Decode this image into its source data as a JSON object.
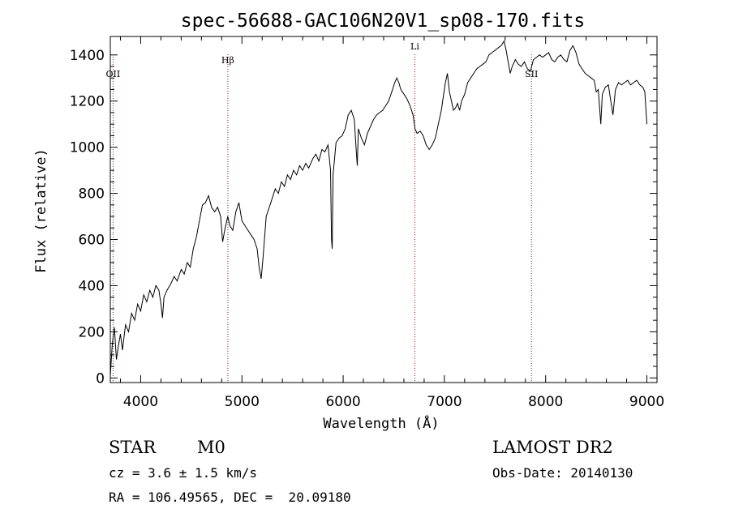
{
  "chart_data": {
    "type": "line",
    "title": "spec-56688-GAC106N20V1_sp08-170.fits",
    "xlabel": "Wavelength (Å)",
    "ylabel": "Flux (relative)",
    "xlim": [
      3700,
      9100
    ],
    "ylim": [
      -20,
      1480
    ],
    "xticks": [
      4000,
      5000,
      6000,
      7000,
      8000,
      9000
    ],
    "yticks": [
      0,
      200,
      400,
      600,
      800,
      1000,
      1200,
      1400
    ],
    "grid": false,
    "series": [
      {
        "name": "spectrum",
        "points": [
          [
            3700,
            10
          ],
          [
            3720,
            150
          ],
          [
            3740,
            220
          ],
          [
            3760,
            80
          ],
          [
            3780,
            140
          ],
          [
            3800,
            190
          ],
          [
            3820,
            120
          ],
          [
            3850,
            230
          ],
          [
            3880,
            200
          ],
          [
            3910,
            280
          ],
          [
            3940,
            250
          ],
          [
            3970,
            320
          ],
          [
            4000,
            290
          ],
          [
            4030,
            360
          ],
          [
            4060,
            330
          ],
          [
            4090,
            380
          ],
          [
            4120,
            350
          ],
          [
            4150,
            400
          ],
          [
            4180,
            380
          ],
          [
            4200,
            320
          ],
          [
            4215,
            260
          ],
          [
            4230,
            350
          ],
          [
            4260,
            380
          ],
          [
            4300,
            410
          ],
          [
            4330,
            440
          ],
          [
            4360,
            420
          ],
          [
            4400,
            470
          ],
          [
            4430,
            450
          ],
          [
            4460,
            500
          ],
          [
            4490,
            480
          ],
          [
            4520,
            560
          ],
          [
            4550,
            610
          ],
          [
            4580,
            680
          ],
          [
            4610,
            750
          ],
          [
            4640,
            760
          ],
          [
            4670,
            790
          ],
          [
            4700,
            740
          ],
          [
            4730,
            720
          ],
          [
            4760,
            740
          ],
          [
            4790,
            700
          ],
          [
            4810,
            590
          ],
          [
            4830,
            640
          ],
          [
            4860,
            700
          ],
          [
            4880,
            660
          ],
          [
            4910,
            640
          ],
          [
            4940,
            720
          ],
          [
            4970,
            760
          ],
          [
            5000,
            680
          ],
          [
            5030,
            660
          ],
          [
            5060,
            640
          ],
          [
            5090,
            620
          ],
          [
            5120,
            600
          ],
          [
            5150,
            560
          ],
          [
            5170,
            480
          ],
          [
            5190,
            430
          ],
          [
            5210,
            530
          ],
          [
            5240,
            700
          ],
          [
            5270,
            740
          ],
          [
            5300,
            780
          ],
          [
            5330,
            820
          ],
          [
            5360,
            800
          ],
          [
            5390,
            850
          ],
          [
            5420,
            830
          ],
          [
            5450,
            880
          ],
          [
            5480,
            860
          ],
          [
            5510,
            900
          ],
          [
            5540,
            880
          ],
          [
            5570,
            920
          ],
          [
            5600,
            900
          ],
          [
            5630,
            930
          ],
          [
            5660,
            910
          ],
          [
            5700,
            950
          ],
          [
            5730,
            970
          ],
          [
            5760,
            940
          ],
          [
            5790,
            990
          ],
          [
            5820,
            980
          ],
          [
            5850,
            1010
          ],
          [
            5875,
            900
          ],
          [
            5885,
            600
          ],
          [
            5892,
            560
          ],
          [
            5900,
            880
          ],
          [
            5930,
            1020
          ],
          [
            5960,
            1040
          ],
          [
            5990,
            1050
          ],
          [
            6020,
            1080
          ],
          [
            6050,
            1140
          ],
          [
            6080,
            1160
          ],
          [
            6110,
            1120
          ],
          [
            6130,
            980
          ],
          [
            6140,
            920
          ],
          [
            6150,
            1080
          ],
          [
            6180,
            1040
          ],
          [
            6210,
            1010
          ],
          [
            6240,
            1060
          ],
          [
            6270,
            1090
          ],
          [
            6300,
            1120
          ],
          [
            6330,
            1140
          ],
          [
            6360,
            1150
          ],
          [
            6390,
            1160
          ],
          [
            6420,
            1180
          ],
          [
            6450,
            1200
          ],
          [
            6480,
            1240
          ],
          [
            6510,
            1280
          ],
          [
            6530,
            1300
          ],
          [
            6550,
            1280
          ],
          [
            6570,
            1250
          ],
          [
            6600,
            1230
          ],
          [
            6630,
            1210
          ],
          [
            6660,
            1180
          ],
          [
            6690,
            1140
          ],
          [
            6710,
            1080
          ],
          [
            6730,
            1060
          ],
          [
            6760,
            1070
          ],
          [
            6790,
            1050
          ],
          [
            6820,
            1010
          ],
          [
            6850,
            990
          ],
          [
            6880,
            1010
          ],
          [
            6910,
            1040
          ],
          [
            6940,
            1100
          ],
          [
            6970,
            1160
          ],
          [
            6990,
            1220
          ],
          [
            7010,
            1280
          ],
          [
            7030,
            1320
          ],
          [
            7050,
            1240
          ],
          [
            7070,
            1200
          ],
          [
            7090,
            1160
          ],
          [
            7110,
            1170
          ],
          [
            7130,
            1190
          ],
          [
            7150,
            1160
          ],
          [
            7170,
            1200
          ],
          [
            7200,
            1230
          ],
          [
            7230,
            1280
          ],
          [
            7260,
            1300
          ],
          [
            7290,
            1320
          ],
          [
            7320,
            1340
          ],
          [
            7350,
            1350
          ],
          [
            7380,
            1360
          ],
          [
            7410,
            1370
          ],
          [
            7440,
            1400
          ],
          [
            7470,
            1410
          ],
          [
            7500,
            1420
          ],
          [
            7530,
            1430
          ],
          [
            7560,
            1440
          ],
          [
            7590,
            1460
          ],
          [
            7610,
            1420
          ],
          [
            7630,
            1370
          ],
          [
            7650,
            1320
          ],
          [
            7670,
            1350
          ],
          [
            7700,
            1380
          ],
          [
            7730,
            1360
          ],
          [
            7760,
            1350
          ],
          [
            7790,
            1370
          ],
          [
            7820,
            1340
          ],
          [
            7850,
            1330
          ],
          [
            7880,
            1380
          ],
          [
            7910,
            1390
          ],
          [
            7940,
            1400
          ],
          [
            7970,
            1390
          ],
          [
            8000,
            1400
          ],
          [
            8030,
            1410
          ],
          [
            8060,
            1380
          ],
          [
            8090,
            1370
          ],
          [
            8120,
            1390
          ],
          [
            8150,
            1400
          ],
          [
            8180,
            1380
          ],
          [
            8210,
            1370
          ],
          [
            8240,
            1420
          ],
          [
            8270,
            1440
          ],
          [
            8300,
            1410
          ],
          [
            8330,
            1360
          ],
          [
            8360,
            1340
          ],
          [
            8390,
            1320
          ],
          [
            8420,
            1310
          ],
          [
            8450,
            1300
          ],
          [
            8480,
            1290
          ],
          [
            8500,
            1240
          ],
          [
            8520,
            1250
          ],
          [
            8545,
            1100
          ],
          [
            8560,
            1230
          ],
          [
            8590,
            1260
          ],
          [
            8620,
            1270
          ],
          [
            8640,
            1210
          ],
          [
            8665,
            1140
          ],
          [
            8690,
            1250
          ],
          [
            8720,
            1280
          ],
          [
            8750,
            1270
          ],
          [
            8780,
            1280
          ],
          [
            8810,
            1290
          ],
          [
            8840,
            1270
          ],
          [
            8870,
            1280
          ],
          [
            8900,
            1290
          ],
          [
            8930,
            1270
          ],
          [
            8960,
            1260
          ],
          [
            8980,
            1240
          ],
          [
            9000,
            1100
          ]
        ]
      }
    ],
    "line_markers": [
      {
        "label": "OII",
        "wavelength": 3727
      },
      {
        "label": "Hβ",
        "wavelength": 4861
      },
      {
        "label": "Li",
        "wavelength": 6708
      },
      {
        "label": "SII",
        "wavelength": 7860
      }
    ]
  },
  "info": {
    "class": "STAR",
    "subclass": "M0",
    "cz": "cz = 3.6 ± 1.5 km/s",
    "radec": "RA = 106.49565, DEC =  20.09180",
    "survey": "LAMOST DR2",
    "obsdate": "Obs-Date: 20140130"
  },
  "colors": {
    "line": "#000000",
    "marker": "#8b1a1a",
    "background": "#ffffff"
  }
}
